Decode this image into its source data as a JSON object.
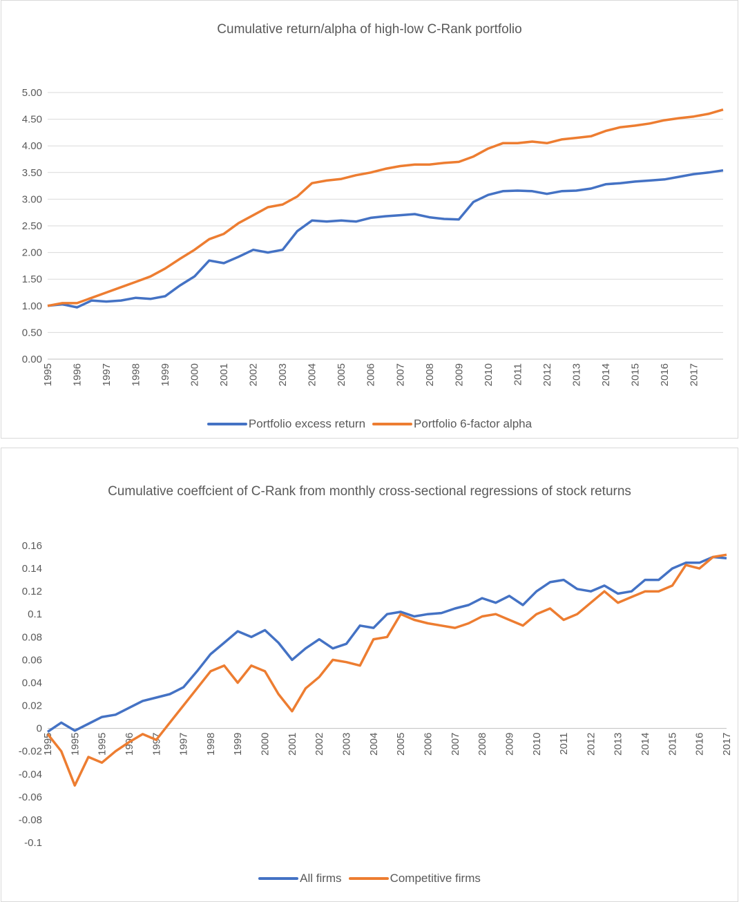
{
  "chart_data": [
    {
      "type": "line",
      "title": "Cumulative return/alpha of high-low C-Rank portfolio",
      "categories": [
        "1995",
        null,
        "1996",
        null,
        "1997",
        null,
        "1998",
        null,
        "1999",
        null,
        "2000",
        null,
        "2001",
        null,
        "2002",
        null,
        "2003",
        null,
        "2004",
        null,
        "2005",
        null,
        "2006",
        null,
        "2007",
        null,
        "2008",
        null,
        "2009",
        null,
        "2010",
        null,
        "2011",
        null,
        "2012",
        null,
        "2013",
        null,
        "2014",
        null,
        "2015",
        null,
        "2016",
        null,
        "2017",
        null,
        null
      ],
      "series": [
        {
          "name": "Portfolio excess return",
          "color": "#4472c4",
          "values": [
            1.0,
            1.03,
            0.97,
            1.1,
            1.08,
            1.1,
            1.15,
            1.13,
            1.18,
            1.38,
            1.55,
            1.85,
            1.8,
            1.92,
            2.05,
            2.0,
            2.05,
            2.4,
            2.6,
            2.58,
            2.6,
            2.58,
            2.65,
            2.68,
            2.7,
            2.72,
            2.66,
            2.63,
            2.62,
            2.95,
            3.08,
            3.15,
            3.16,
            3.15,
            3.1,
            3.15,
            3.16,
            3.2,
            3.28,
            3.3,
            3.33,
            3.35,
            3.37,
            3.42,
            3.47,
            3.5,
            3.54
          ]
        },
        {
          "name": "Portfolio 6-factor alpha",
          "color": "#ed7d31",
          "values": [
            1.0,
            1.05,
            1.05,
            1.15,
            1.25,
            1.35,
            1.45,
            1.55,
            1.7,
            1.88,
            2.05,
            2.25,
            2.35,
            2.55,
            2.7,
            2.85,
            2.9,
            3.05,
            3.3,
            3.35,
            3.38,
            3.45,
            3.5,
            3.57,
            3.62,
            3.65,
            3.65,
            3.68,
            3.7,
            3.8,
            3.95,
            4.05,
            4.05,
            4.08,
            4.05,
            4.12,
            4.15,
            4.18,
            4.28,
            4.35,
            4.38,
            4.42,
            4.48,
            4.52,
            4.55,
            4.6,
            4.68
          ]
        }
      ],
      "ylim": [
        0,
        5
      ],
      "yticks": [
        {
          "value": 0,
          "label": "0.00"
        },
        {
          "value": 0.5,
          "label": "0.50"
        },
        {
          "value": 1,
          "label": "1.00"
        },
        {
          "value": 1.5,
          "label": "1.50"
        },
        {
          "value": 2,
          "label": "2.00"
        },
        {
          "value": 2.5,
          "label": "2.50"
        },
        {
          "value": 3,
          "label": "3.00"
        },
        {
          "value": 3.5,
          "label": "3.50"
        },
        {
          "value": 4,
          "label": "4.00"
        },
        {
          "value": 4.5,
          "label": "4.50"
        },
        {
          "value": 5,
          "label": "5.00"
        }
      ],
      "grid": true,
      "legend": "bottom"
    },
    {
      "type": "line",
      "title": "Cumulative coeffcient of C-Rank from monthly cross-sectional regressions of stock returns",
      "categories": [
        "1995",
        null,
        "1995",
        null,
        "1995",
        null,
        "1996",
        null,
        "1997",
        null,
        "1997",
        null,
        "1998",
        null,
        "1999",
        null,
        "2000",
        null,
        "2001",
        null,
        "2002",
        null,
        "2003",
        null,
        "2004",
        null,
        "2005",
        null,
        "2006",
        null,
        "2007",
        null,
        "2008",
        null,
        "2009",
        null,
        "2010",
        null,
        "2011",
        null,
        "2012",
        null,
        "2013",
        null,
        "2014",
        null,
        "2015",
        null,
        "2016",
        null,
        "2017"
      ],
      "series": [
        {
          "name": "All firms",
          "color": "#4472c4",
          "values": [
            -0.003,
            0.005,
            -0.002,
            0.004,
            0.01,
            0.012,
            0.018,
            0.024,
            0.027,
            0.03,
            0.036,
            0.05,
            0.065,
            0.075,
            0.085,
            0.08,
            0.086,
            0.075,
            0.06,
            0.07,
            0.078,
            0.07,
            0.074,
            0.09,
            0.088,
            0.1,
            0.102,
            0.098,
            0.1,
            0.101,
            0.105,
            0.108,
            0.114,
            0.11,
            0.116,
            0.108,
            0.12,
            0.128,
            0.13,
            0.122,
            0.12,
            0.125,
            0.118,
            0.12,
            0.13,
            0.13,
            0.14,
            0.145,
            0.145,
            0.15,
            0.149
          ]
        },
        {
          "name": "Competitive firms",
          "color": "#ed7d31",
          "values": [
            -0.005,
            -0.02,
            -0.05,
            -0.025,
            -0.03,
            -0.02,
            -0.012,
            -0.005,
            -0.01,
            0.005,
            0.02,
            0.035,
            0.05,
            0.055,
            0.04,
            0.055,
            0.05,
            0.03,
            0.015,
            0.035,
            0.045,
            0.06,
            0.058,
            0.055,
            0.078,
            0.08,
            0.1,
            0.095,
            0.092,
            0.09,
            0.088,
            0.092,
            0.098,
            0.1,
            0.095,
            0.09,
            0.1,
            0.105,
            0.095,
            0.1,
            0.11,
            0.12,
            0.11,
            0.115,
            0.12,
            0.12,
            0.125,
            0.143,
            0.14,
            0.15,
            0.152
          ]
        }
      ],
      "ylim": [
        -0.1,
        0.16
      ],
      "yticks": [
        -0.1,
        -0.08,
        -0.06,
        -0.04,
        -0.02,
        0,
        0.02,
        0.04,
        0.06,
        0.08,
        0.1,
        0.12,
        0.14,
        0.16
      ],
      "grid": false,
      "legend": "bottom"
    }
  ]
}
